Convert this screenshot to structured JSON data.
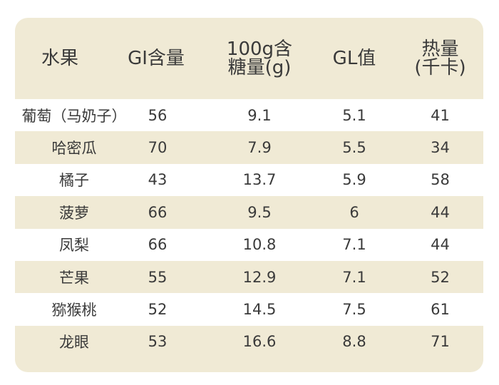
{
  "table": {
    "headers": [
      {
        "line1": "水果",
        "line2": ""
      },
      {
        "line1": "GI含量",
        "line2": ""
      },
      {
        "line1": "100g含",
        "line2": "糖量(g)"
      },
      {
        "line1": "GL值",
        "line2": ""
      },
      {
        "line1": "热量",
        "line2": "(千卡)"
      }
    ],
    "rows": [
      [
        "葡萄（马奶子）",
        "56",
        "9.1",
        "5.1",
        "41"
      ],
      [
        "哈密瓜",
        "70",
        "7.9",
        "5.5",
        "34"
      ],
      [
        "橘子",
        "43",
        "13.7",
        "5.9",
        "58"
      ],
      [
        "菠萝",
        "66",
        "9.5",
        "6",
        "44"
      ],
      [
        "凤梨",
        "66",
        "10.8",
        "7.1",
        "44"
      ],
      [
        "芒果",
        "55",
        "12.9",
        "7.1",
        "52"
      ],
      [
        "猕猴桃",
        "52",
        "14.5",
        "7.5",
        "61"
      ],
      [
        "龙眼",
        "53",
        "16.6",
        "8.8",
        "71"
      ]
    ]
  },
  "colors": {
    "header_bg": "#f0ead5",
    "stripe_tan": "#f0ead5",
    "stripe_white": "#ffffff",
    "text": "#3a3a3a"
  }
}
